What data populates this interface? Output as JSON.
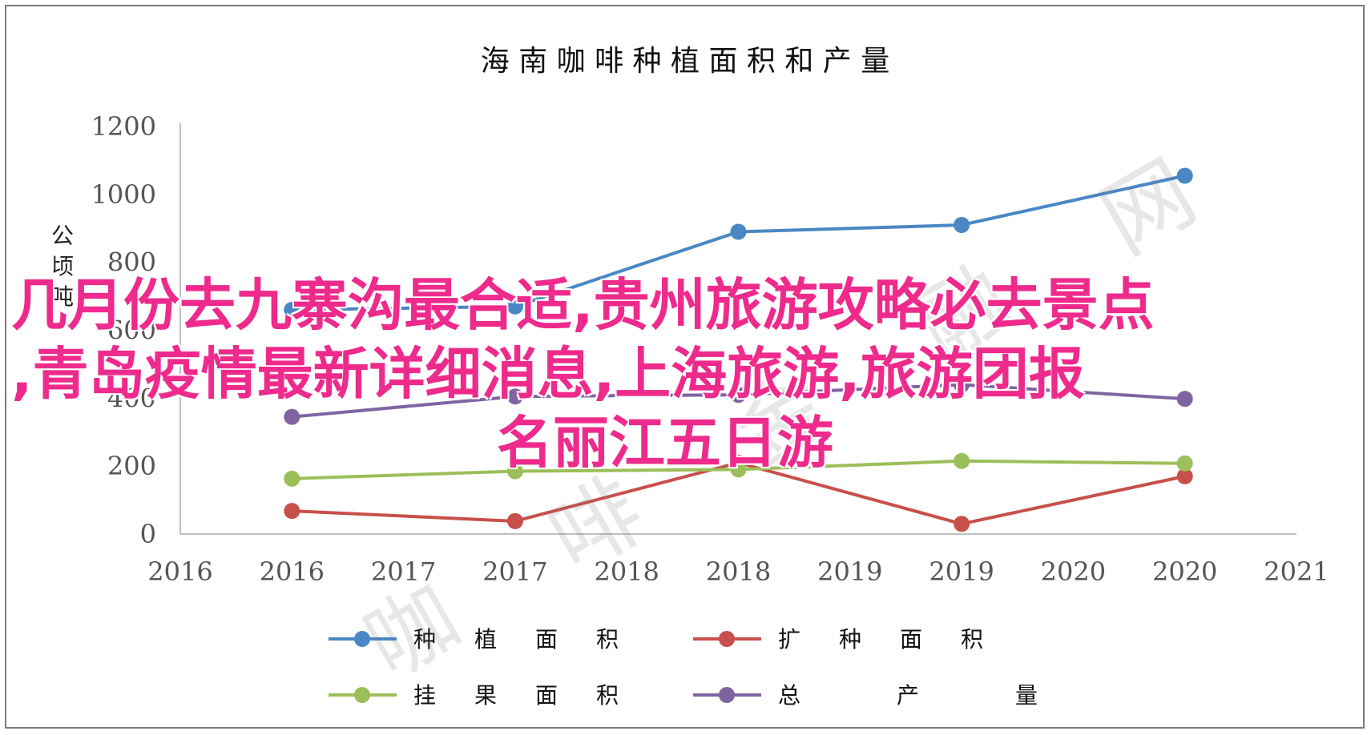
{
  "chart_data": {
    "type": "line",
    "title": "海 南 咖 啡 种 植 面 积 和 产 量",
    "ylabel": "公顷/吨",
    "ylim": [
      0,
      1200
    ],
    "yticks": [
      "0",
      "200",
      "400",
      "600",
      "800",
      "1000",
      "1200"
    ],
    "xticks": [
      "2016",
      "2016",
      "2017",
      "2017",
      "2018",
      "2018",
      "2019",
      "2019",
      "2020",
      "2020",
      "2021"
    ],
    "x": [
      2016,
      2017,
      2018,
      2019,
      2020
    ],
    "series": [
      {
        "name": "种 植 面 积",
        "color": "#4a87c5",
        "values": [
          660,
          670,
          890,
          910,
          1055
        ]
      },
      {
        "name": "扩 种 面 积",
        "color": "#c8504a",
        "values": [
          68,
          38,
          210,
          30,
          170
        ]
      },
      {
        "name": "挂 果 面 积",
        "color": "#9bbf59",
        "values": [
          163,
          185,
          190,
          215,
          208
        ]
      },
      {
        "name": "总 产 量",
        "color": "#8064a2",
        "values": [
          345,
          405,
          410,
          440,
          398
        ]
      }
    ],
    "legend_position": "bottom",
    "grid": false
  },
  "overlay": {
    "line1": "几月份去九寨沟最合适,贵州旅游攻略必去景点",
    "line2": ",青岛疫情最新详细消息,上海旅游,旅游团报",
    "line3": "名丽江五日游"
  },
  "watermark": "咖 啡 金 融 网"
}
